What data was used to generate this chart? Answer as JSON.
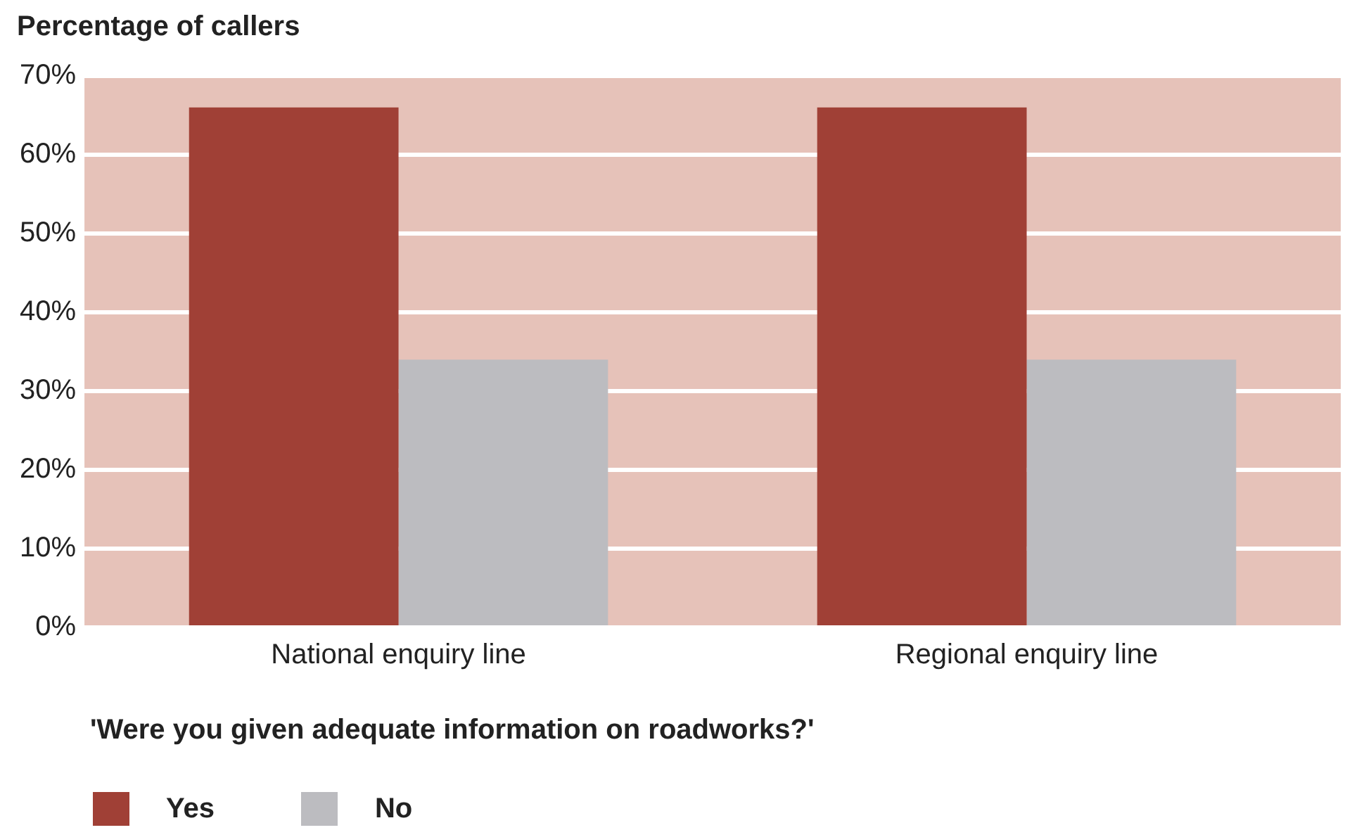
{
  "chart_data": {
    "type": "bar",
    "ylabel": "Percentage of callers",
    "legend_title": "'Were you given adequate information on roadworks?'",
    "categories": [
      "National enquiry line",
      "Regional enquiry line"
    ],
    "series": [
      {
        "name": "Yes",
        "color": "#a04036",
        "values": [
          66,
          66
        ]
      },
      {
        "name": "No",
        "color": "#bcbcc0",
        "values": [
          34,
          34
        ]
      }
    ],
    "ylim": [
      0,
      70
    ],
    "yticks": [
      {
        "value": 0,
        "label": "0%"
      },
      {
        "value": 10,
        "label": "10%"
      },
      {
        "value": 20,
        "label": "20%"
      },
      {
        "value": 30,
        "label": "30%"
      },
      {
        "value": 40,
        "label": "40%"
      },
      {
        "value": 50,
        "label": "50%"
      },
      {
        "value": 60,
        "label": "60%"
      },
      {
        "value": 70,
        "label": "70%"
      }
    ],
    "grid": "y",
    "legend": "bottom"
  }
}
